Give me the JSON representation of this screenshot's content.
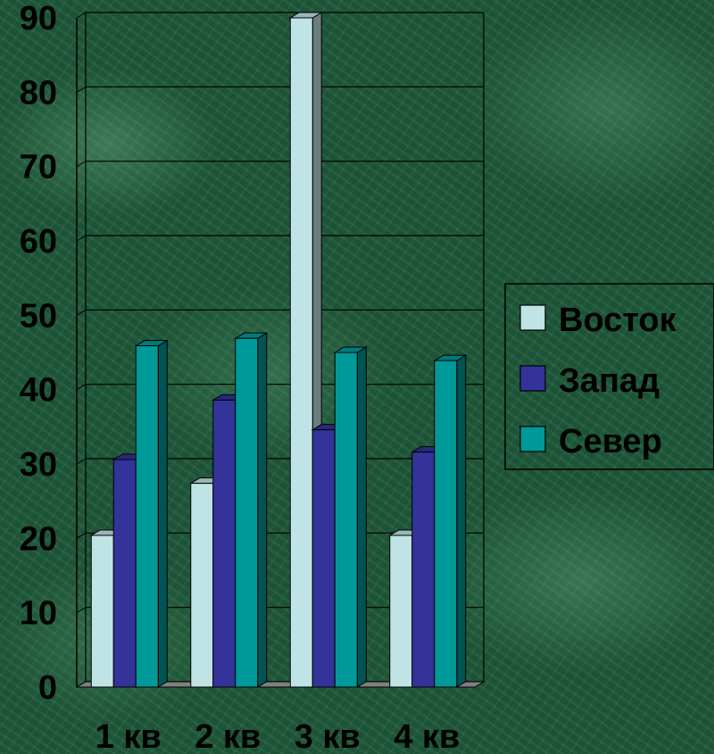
{
  "chart_data": {
    "type": "bar",
    "categories": [
      "1 кв",
      "2 кв",
      "3 кв",
      "4 кв"
    ],
    "series": [
      {
        "name": "Восток",
        "values": [
          20.4,
          27.4,
          90,
          20.4
        ],
        "color": "#c0e4e6"
      },
      {
        "name": "Запад",
        "values": [
          30.6,
          38.6,
          34.6,
          31.6
        ],
        "color": "#33339a"
      },
      {
        "name": "Север",
        "values": [
          45.9,
          46.9,
          45,
          43.9
        ],
        "color": "#009999"
      }
    ],
    "y_ticks": [
      "0",
      "10",
      "20",
      "30",
      "40",
      "50",
      "60",
      "70",
      "80",
      "90"
    ],
    "ylim": [
      0,
      90
    ],
    "grid": true,
    "legend_position": "right",
    "style": "3d-column"
  }
}
